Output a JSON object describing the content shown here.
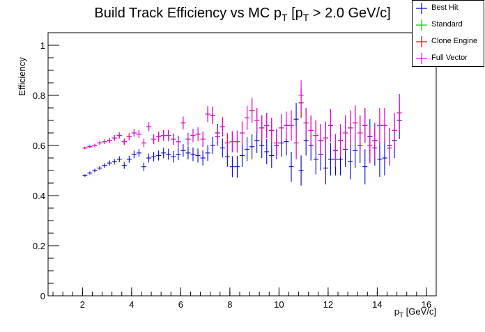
{
  "chart_data": {
    "type": "scatter",
    "title_main": "Build Track Efficiency vs MC p",
    "title_sub1": "T",
    "title_mid": " [p",
    "title_sub2": "T",
    "title_end": " > 2.0 GeV/c]",
    "xlabel_main": "p",
    "xlabel_sub": "T",
    "xlabel_end": " [GeV/c]",
    "ylabel": "Efficiency",
    "xlim": [
      0.6,
      16.4
    ],
    "ylim": [
      0,
      1.05
    ],
    "x_ticks": [
      2,
      4,
      6,
      8,
      10,
      12,
      14,
      16
    ],
    "y_ticks": [
      0,
      0.2,
      0.4,
      0.6,
      0.8,
      1
    ],
    "bin_halfwidth": 0.1,
    "legend_position": "top-right",
    "series": [
      {
        "name": "Best Hit",
        "color": "#0000cc",
        "x": [
          2.1,
          2.3,
          2.5,
          2.7,
          2.9,
          3.1,
          3.3,
          3.5,
          3.7,
          3.9,
          4.1,
          4.3,
          4.5,
          4.7,
          4.9,
          5.1,
          5.3,
          5.5,
          5.7,
          5.9,
          6.1,
          6.3,
          6.5,
          6.7,
          6.9,
          7.1,
          7.3,
          7.5,
          7.7,
          7.9,
          8.1,
          8.3,
          8.5,
          8.7,
          8.9,
          9.1,
          9.3,
          9.5,
          9.7,
          9.9,
          10.1,
          10.3,
          10.5,
          10.7,
          10.9,
          11.1,
          11.3,
          11.5,
          11.7,
          11.9,
          12.1,
          12.3,
          12.5,
          12.7,
          12.9,
          13.1,
          13.3,
          13.5,
          13.7,
          13.9,
          14.1,
          14.3,
          14.5,
          14.7,
          14.9
        ],
        "y": [
          0.48,
          0.49,
          0.5,
          0.51,
          0.52,
          0.53,
          0.535,
          0.545,
          0.52,
          0.545,
          0.565,
          0.57,
          0.515,
          0.55,
          0.555,
          0.56,
          0.57,
          0.565,
          0.555,
          0.565,
          0.58,
          0.57,
          0.565,
          0.56,
          0.55,
          0.57,
          0.6,
          0.65,
          0.59,
          0.555,
          0.515,
          0.515,
          0.56,
          0.585,
          0.595,
          0.62,
          0.6,
          0.575,
          0.56,
          0.6,
          0.61,
          0.615,
          0.515,
          0.705,
          0.5,
          0.62,
          0.6,
          0.545,
          0.565,
          0.51,
          0.545,
          0.545,
          0.545,
          0.585,
          0.535,
          0.58,
          0.6,
          0.515,
          0.635,
          0.59,
          0.545,
          0.55,
          0.6,
          0.62,
          0.7
        ],
        "err": [
          0.005,
          0.006,
          0.007,
          0.008,
          0.009,
          0.01,
          0.011,
          0.012,
          0.013,
          0.014,
          0.015,
          0.016,
          0.017,
          0.018,
          0.019,
          0.02,
          0.021,
          0.022,
          0.023,
          0.024,
          0.025,
          0.026,
          0.027,
          0.028,
          0.03,
          0.032,
          0.034,
          0.036,
          0.038,
          0.04,
          0.042,
          0.044,
          0.046,
          0.048,
          0.05,
          0.05,
          0.05,
          0.05,
          0.05,
          0.055,
          0.055,
          0.055,
          0.06,
          0.065,
          0.06,
          0.06,
          0.06,
          0.06,
          0.065,
          0.065,
          0.065,
          0.065,
          0.065,
          0.07,
          0.07,
          0.07,
          0.07,
          0.07,
          0.07,
          0.07,
          0.07,
          0.07,
          0.07,
          0.07,
          0.075
        ]
      },
      {
        "name": "Standard",
        "color": "#00cc00",
        "x": [
          2.1,
          2.3,
          2.5,
          2.7,
          2.9,
          3.1,
          3.3,
          3.5,
          3.7,
          3.9,
          4.1,
          4.3,
          4.5,
          4.7,
          4.9,
          5.1,
          5.3,
          5.5,
          5.7,
          5.9,
          6.1,
          6.3,
          6.5,
          6.7,
          6.9,
          7.1,
          7.3,
          7.5,
          7.7,
          7.9,
          8.1,
          8.3,
          8.5,
          8.7,
          8.9,
          9.1,
          9.3,
          9.5,
          9.7,
          9.9,
          10.1,
          10.3,
          10.5,
          10.7,
          10.9,
          11.1,
          11.3,
          11.5,
          11.7,
          11.9,
          12.1,
          12.3,
          12.5,
          12.7,
          12.9,
          13.1,
          13.3,
          13.5,
          13.7,
          13.9,
          14.1,
          14.3,
          14.5,
          14.7,
          14.9
        ],
        "y": [
          0.59,
          0.595,
          0.6,
          0.61,
          0.615,
          0.62,
          0.63,
          0.64,
          0.615,
          0.635,
          0.65,
          0.645,
          0.61,
          0.675,
          0.625,
          0.635,
          0.64,
          0.64,
          0.625,
          0.615,
          0.69,
          0.625,
          0.64,
          0.645,
          0.625,
          0.725,
          0.72,
          0.635,
          0.675,
          0.61,
          0.615,
          0.615,
          0.65,
          0.71,
          0.74,
          0.7,
          0.67,
          0.68,
          0.66,
          0.61,
          0.67,
          0.68,
          0.68,
          0.61,
          0.77,
          0.69,
          0.66,
          0.64,
          0.62,
          0.63,
          0.68,
          0.58,
          0.62,
          0.65,
          0.67,
          0.69,
          0.65,
          0.68,
          0.6,
          0.62,
          0.68,
          0.68,
          0.59,
          0.66,
          0.73
        ],
        "err": [
          0.005,
          0.006,
          0.007,
          0.008,
          0.009,
          0.01,
          0.011,
          0.012,
          0.013,
          0.014,
          0.015,
          0.016,
          0.017,
          0.018,
          0.019,
          0.02,
          0.021,
          0.022,
          0.023,
          0.024,
          0.025,
          0.026,
          0.027,
          0.028,
          0.03,
          0.032,
          0.034,
          0.036,
          0.038,
          0.04,
          0.042,
          0.044,
          0.046,
          0.048,
          0.05,
          0.05,
          0.05,
          0.05,
          0.05,
          0.055,
          0.055,
          0.055,
          0.06,
          0.065,
          0.06,
          0.06,
          0.06,
          0.06,
          0.065,
          0.065,
          0.065,
          0.065,
          0.065,
          0.07,
          0.07,
          0.07,
          0.07,
          0.07,
          0.07,
          0.07,
          0.07,
          0.07,
          0.07,
          0.07,
          0.075
        ]
      },
      {
        "name": "Clone Engine",
        "color": "#ee0000",
        "x": [
          2.1,
          2.3,
          2.5,
          2.7,
          2.9,
          3.1,
          3.3,
          3.5,
          3.7,
          3.9,
          4.1,
          4.3,
          4.5,
          4.7,
          4.9,
          5.1,
          5.3,
          5.5,
          5.7,
          5.9,
          6.1,
          6.3,
          6.5,
          6.7,
          6.9,
          7.1,
          7.3,
          7.5,
          7.7,
          7.9,
          8.1,
          8.3,
          8.5,
          8.7,
          8.9,
          9.1,
          9.3,
          9.5,
          9.7,
          9.9,
          10.1,
          10.3,
          10.5,
          10.7,
          10.9,
          11.1,
          11.3,
          11.5,
          11.7,
          11.9,
          12.1,
          12.3,
          12.5,
          12.7,
          12.9,
          13.1,
          13.3,
          13.5,
          13.7,
          13.9,
          14.1,
          14.3,
          14.5,
          14.7,
          14.9
        ],
        "y": [
          0.59,
          0.595,
          0.6,
          0.61,
          0.615,
          0.62,
          0.63,
          0.64,
          0.615,
          0.635,
          0.65,
          0.645,
          0.61,
          0.675,
          0.625,
          0.635,
          0.64,
          0.64,
          0.625,
          0.615,
          0.69,
          0.625,
          0.64,
          0.645,
          0.625,
          0.725,
          0.72,
          0.635,
          0.675,
          0.61,
          0.615,
          0.615,
          0.65,
          0.71,
          0.74,
          0.7,
          0.67,
          0.68,
          0.66,
          0.61,
          0.67,
          0.68,
          0.68,
          0.61,
          0.77,
          0.69,
          0.66,
          0.64,
          0.62,
          0.63,
          0.68,
          0.58,
          0.62,
          0.65,
          0.67,
          0.69,
          0.65,
          0.68,
          0.6,
          0.62,
          0.68,
          0.68,
          0.59,
          0.66,
          0.73
        ],
        "err": [
          0.005,
          0.006,
          0.007,
          0.008,
          0.009,
          0.01,
          0.011,
          0.012,
          0.013,
          0.014,
          0.015,
          0.016,
          0.017,
          0.018,
          0.019,
          0.02,
          0.021,
          0.022,
          0.023,
          0.024,
          0.025,
          0.026,
          0.027,
          0.028,
          0.03,
          0.032,
          0.034,
          0.036,
          0.038,
          0.04,
          0.042,
          0.044,
          0.046,
          0.048,
          0.05,
          0.05,
          0.05,
          0.05,
          0.05,
          0.055,
          0.055,
          0.055,
          0.06,
          0.065,
          0.06,
          0.06,
          0.06,
          0.06,
          0.065,
          0.065,
          0.065,
          0.065,
          0.065,
          0.07,
          0.07,
          0.07,
          0.07,
          0.07,
          0.07,
          0.07,
          0.07,
          0.07,
          0.07,
          0.07,
          0.075
        ]
      },
      {
        "name": "Full Vector",
        "color": "#ee00ee",
        "x": [
          2.1,
          2.3,
          2.5,
          2.7,
          2.9,
          3.1,
          3.3,
          3.5,
          3.7,
          3.9,
          4.1,
          4.3,
          4.5,
          4.7,
          4.9,
          5.1,
          5.3,
          5.5,
          5.7,
          5.9,
          6.1,
          6.3,
          6.5,
          6.7,
          6.9,
          7.1,
          7.3,
          7.5,
          7.7,
          7.9,
          8.1,
          8.3,
          8.5,
          8.7,
          8.9,
          9.1,
          9.3,
          9.5,
          9.7,
          9.9,
          10.1,
          10.3,
          10.5,
          10.7,
          10.9,
          11.1,
          11.3,
          11.5,
          11.7,
          11.9,
          12.1,
          12.3,
          12.5,
          12.7,
          12.9,
          13.1,
          13.3,
          13.5,
          13.7,
          13.9,
          14.1,
          14.3,
          14.5,
          14.7,
          14.9
        ],
        "y": [
          0.59,
          0.595,
          0.6,
          0.61,
          0.615,
          0.62,
          0.63,
          0.64,
          0.615,
          0.635,
          0.65,
          0.645,
          0.61,
          0.675,
          0.625,
          0.635,
          0.64,
          0.64,
          0.625,
          0.615,
          0.69,
          0.625,
          0.64,
          0.645,
          0.625,
          0.725,
          0.72,
          0.635,
          0.675,
          0.61,
          0.615,
          0.615,
          0.65,
          0.71,
          0.74,
          0.7,
          0.67,
          0.68,
          0.66,
          0.61,
          0.67,
          0.68,
          0.68,
          0.61,
          0.8,
          0.69,
          0.66,
          0.64,
          0.62,
          0.63,
          0.68,
          0.58,
          0.62,
          0.65,
          0.67,
          0.69,
          0.65,
          0.68,
          0.6,
          0.62,
          0.68,
          0.68,
          0.59,
          0.66,
          0.73
        ],
        "err": [
          0.005,
          0.006,
          0.007,
          0.008,
          0.009,
          0.01,
          0.011,
          0.012,
          0.013,
          0.014,
          0.015,
          0.016,
          0.017,
          0.018,
          0.019,
          0.02,
          0.021,
          0.022,
          0.023,
          0.024,
          0.025,
          0.026,
          0.027,
          0.028,
          0.03,
          0.032,
          0.034,
          0.036,
          0.038,
          0.04,
          0.042,
          0.044,
          0.046,
          0.048,
          0.05,
          0.05,
          0.05,
          0.05,
          0.05,
          0.055,
          0.055,
          0.055,
          0.06,
          0.065,
          0.06,
          0.06,
          0.06,
          0.06,
          0.065,
          0.065,
          0.065,
          0.065,
          0.065,
          0.07,
          0.07,
          0.07,
          0.07,
          0.07,
          0.07,
          0.07,
          0.07,
          0.07,
          0.07,
          0.07,
          0.075
        ]
      }
    ]
  }
}
